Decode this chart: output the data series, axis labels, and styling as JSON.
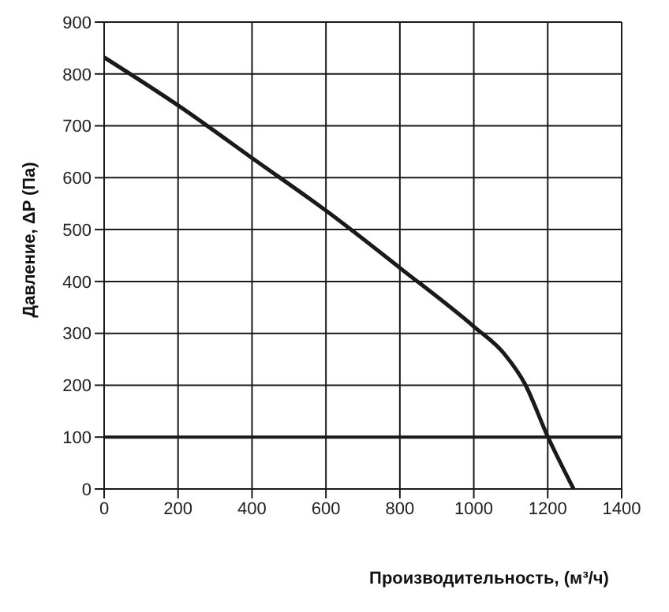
{
  "chart_data": {
    "type": "line",
    "xlabel": "Производительность, (м³/ч)",
    "ylabel": "Давление, ΔP (Па)",
    "series": [
      {
        "color": "#1a1a1a",
        "x": [
          0,
          207,
          408,
          603,
          804,
          1000,
          1083,
          1138,
          1200,
          1270
        ],
        "values": [
          832,
          736,
          634,
          535,
          424,
          313,
          260,
          203,
          101,
          0
        ]
      }
    ],
    "xlim": [
      0,
      1400
    ],
    "xticks": [
      0,
      200,
      400,
      600,
      800,
      1000,
      1200,
      1400
    ],
    "ylim": [
      0,
      900
    ],
    "yticks": [
      0,
      100,
      200,
      300,
      400,
      500,
      600,
      700,
      800,
      900
    ],
    "grid": true,
    "marker": "none",
    "line_style": "solid",
    "ref_lines": [
      {
        "axis": "y",
        "value": 100,
        "color": "#1a1a1a"
      }
    ]
  }
}
